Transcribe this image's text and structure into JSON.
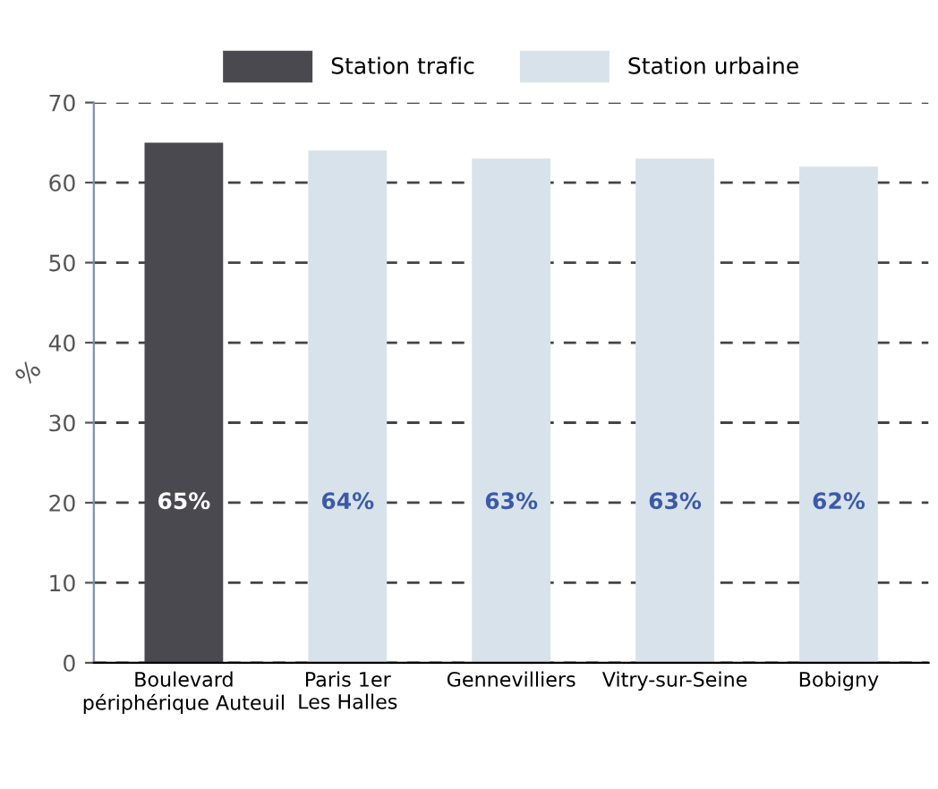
{
  "chart_data": {
    "type": "bar",
    "ylabel": "%",
    "categories": [
      "Boulevard\npériphérique Auteuil",
      "Paris 1er\nLes Halles",
      "Gennevilliers",
      "Vitry-sur-Seine",
      "Bobigny"
    ],
    "series": [
      {
        "name": "Station trafic",
        "color": "#4a4950",
        "values": [
          65,
          null,
          null,
          null,
          null
        ],
        "value_labels": [
          "65%",
          null,
          null,
          null,
          null
        ]
      },
      {
        "name": "Station urbaine",
        "color": "#d8e2ea",
        "values": [
          null,
          64,
          63,
          63,
          62
        ],
        "value_labels": [
          null,
          "64%",
          "63%",
          "63%",
          "62%"
        ]
      }
    ],
    "ylim": [
      0,
      70
    ],
    "yticks": [
      0,
      10,
      20,
      30,
      40,
      50,
      60,
      70
    ],
    "grid": "y",
    "legend": "top"
  }
}
